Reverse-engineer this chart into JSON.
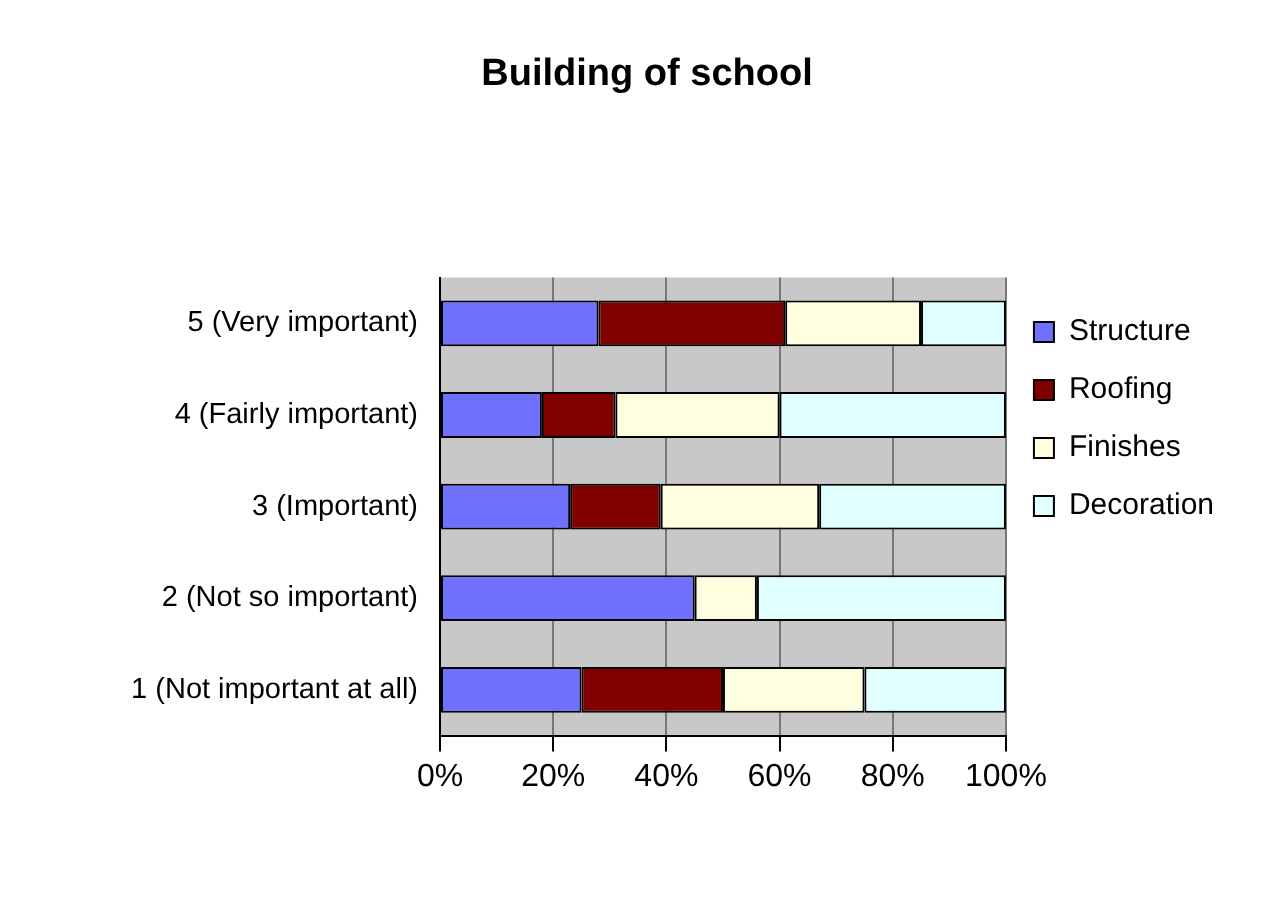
{
  "chart_data": {
    "type": "bar",
    "orientation": "horizontal",
    "stacked": true,
    "title": "Building of school",
    "categories": [
      "5 (Very important)",
      "4 (Fairly important)",
      "3 (Important)",
      "2 (Not so important)",
      "1 (Not important at all)"
    ],
    "series": [
      {
        "name": "Structure",
        "color": "#7070ff",
        "values": [
          28,
          18,
          23,
          45,
          25
        ]
      },
      {
        "name": "Roofing",
        "color": "#800000",
        "values": [
          33,
          13,
          16,
          0,
          25
        ]
      },
      {
        "name": "Finishes",
        "color": "#ffffe0",
        "values": [
          24,
          29,
          28,
          11,
          25
        ]
      },
      {
        "name": "Decoration",
        "color": "#e0ffff",
        "values": [
          15,
          40,
          33,
          44,
          25
        ]
      }
    ],
    "xlim": [
      0,
      100
    ],
    "xticks": [
      {
        "value": 0,
        "label": "0%"
      },
      {
        "value": 20,
        "label": "20%"
      },
      {
        "value": 40,
        "label": "40%"
      },
      {
        "value": 60,
        "label": "60%"
      },
      {
        "value": 80,
        "label": "80%"
      },
      {
        "value": 100,
        "label": "100%"
      }
    ],
    "grid": "x",
    "legend": "right"
  }
}
